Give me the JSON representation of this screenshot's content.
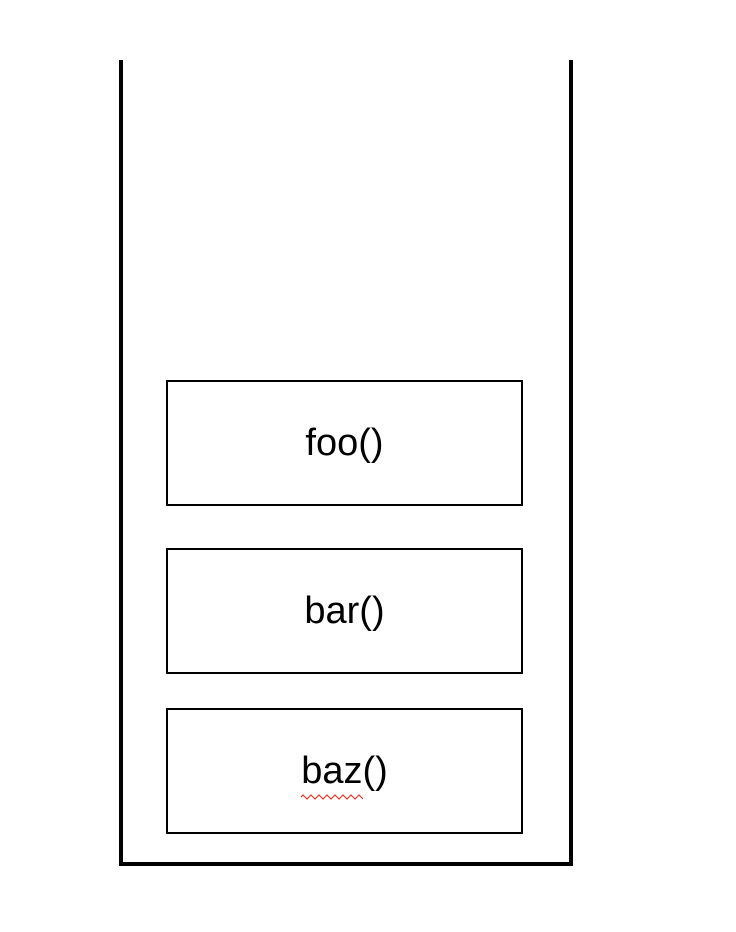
{
  "diagram": {
    "frames": [
      {
        "label": "foo()"
      },
      {
        "label": "bar()"
      },
      {
        "label": "baz()",
        "spellcheck_squiggle": true
      }
    ],
    "colors": {
      "stroke": "#000000",
      "background": "#ffffff",
      "squiggle": "#e03a2e"
    }
  }
}
